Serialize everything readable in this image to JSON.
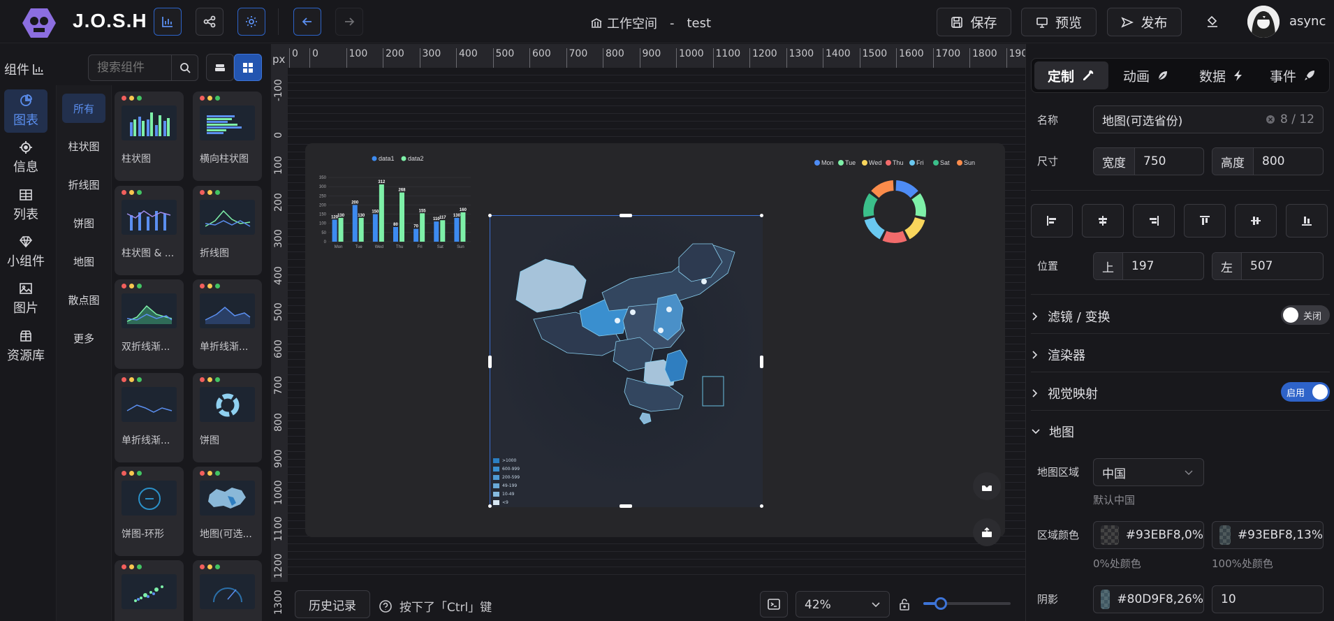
{
  "header": {
    "brand": "J.O.S.H",
    "workspace_label": "工作空间",
    "separator": "-",
    "project_name": "test",
    "save_label": "保存",
    "preview_label": "预览",
    "publish_label": "发布",
    "username": "async"
  },
  "left": {
    "title": "组件",
    "search_placeholder": "搜索组件",
    "categories": [
      {
        "label": "图表",
        "icon": "pie-icon"
      },
      {
        "label": "信息",
        "icon": "target-icon"
      },
      {
        "label": "列表",
        "icon": "table-icon"
      },
      {
        "label": "小组件",
        "icon": "diamond-icon"
      },
      {
        "label": "图片",
        "icon": "image-icon"
      },
      {
        "label": "资源库",
        "icon": "package-icon"
      }
    ],
    "subcategories": [
      "所有",
      "柱状图",
      "折线图",
      "饼图",
      "地图",
      "散点图",
      "更多"
    ],
    "cards": [
      "柱状图",
      "横向柱状图",
      "柱状图 & ...",
      "折线图",
      "双折线渐...",
      "单折线渐...",
      "单折线渐...",
      "饼图",
      "饼图-环形",
      "地图(可选...",
      "",
      ""
    ]
  },
  "canvas": {
    "unit": "px",
    "ruler_x": [
      "0",
      "0",
      "100",
      "200",
      "300",
      "400",
      "500",
      "600",
      "700",
      "800",
      "900",
      "1000",
      "1100",
      "1200",
      "1300",
      "1400",
      "1500",
      "1600",
      "1700",
      "1800",
      "1900"
    ],
    "ruler_y": [
      "-100",
      "0",
      "100",
      "200",
      "300",
      "400",
      "500",
      "600",
      "700",
      "800",
      "900",
      "1000",
      "1100",
      "1200",
      "1300"
    ],
    "bar_chart": {
      "legend": [
        "data1",
        "data2"
      ],
      "yticks": [
        "350",
        "300",
        "250",
        "200",
        "150",
        "100",
        "50",
        "0"
      ]
    },
    "map_legend": [
      ">1000",
      "600-999",
      "200-599",
      "49-199",
      "10-49",
      "<9"
    ]
  },
  "bottom": {
    "history_label": "历史记录",
    "hint": "按下了「Ctrl」键",
    "zoom": "42%",
    "zoom_fraction": 0.2
  },
  "right": {
    "tabs": [
      "定制",
      "动画",
      "数据",
      "事件"
    ],
    "name_label": "名称",
    "name_value": "地图(可选省份)",
    "name_count": "8 / 12",
    "size_label": "尺寸",
    "width_label": "宽度",
    "width_value": "750",
    "height_label": "高度",
    "height_value": "800",
    "pos_label": "位置",
    "top_label": "上",
    "top_value": "197",
    "left_label": "左",
    "left_value": "507",
    "sections": {
      "filter": "滤镜 / 变换",
      "filter_state": "关闭",
      "renderer": "渲染器",
      "visual_map": "视觉映射",
      "visual_state": "启用",
      "map": "地图"
    },
    "map_region_label": "地图区域",
    "map_region_value": "中国",
    "map_region_default": "默认中国",
    "area_color_label": "区域颜色",
    "color0": "#93EBF8,0%",
    "color0_caption": "0%处颜色",
    "color100": "#93EBF8,13%",
    "color100_caption": "100%处颜色",
    "shadow_label": "阴影",
    "shadow_color": "#80D9F8,26%",
    "shadow_blur": "10"
  },
  "chart_data": [
    {
      "type": "bar",
      "categories": [
        "Mon",
        "Tue",
        "Wed",
        "Thu",
        "Fri",
        "Sat",
        "Sun"
      ],
      "series": [
        {
          "name": "data1",
          "values": [
            120,
            200,
            150,
            80,
            70,
            110,
            130
          ]
        },
        {
          "name": "data2",
          "values": [
            130,
            130,
            312,
            268,
            155,
            117,
            160
          ]
        }
      ],
      "ylim": [
        0,
        350
      ],
      "colors": [
        "#3d8bf0",
        "#7ef0a8"
      ]
    },
    {
      "type": "pie",
      "categories": [
        "Mon",
        "Tue",
        "Wed",
        "Thu",
        "Fri",
        "Sat",
        "Sun"
      ],
      "values": [
        1,
        1,
        1,
        1,
        1,
        1,
        1
      ],
      "colors": [
        "#4e8cf5",
        "#7ef0a8",
        "#f8d55c",
        "#f26b6b",
        "#6ac8f0",
        "#3bbf8a",
        "#fb8c4b"
      ]
    }
  ]
}
